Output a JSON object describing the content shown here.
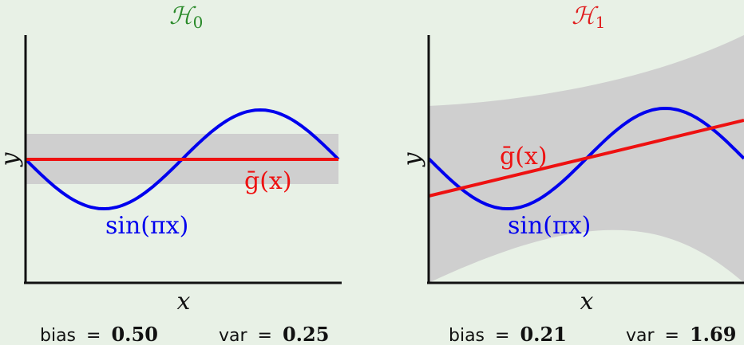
{
  "panels": [
    {
      "title": "ℋ",
      "title_sub": "0",
      "title_color": "#2a8a2a",
      "y_label": "y",
      "x_label": "x",
      "curve_label": "sin(πx)",
      "mean_label": "ḡ(x)",
      "bias_label": "bias",
      "bias_value": "0.50",
      "var_label": "var",
      "var_value": "0.25"
    },
    {
      "title": "ℋ",
      "title_sub": "1",
      "title_color": "#e01e1e",
      "y_label": "y",
      "x_label": "x",
      "curve_label": "sin(πx)",
      "mean_label": "ḡ(x)",
      "bias_label": "bias",
      "bias_value": "0.21",
      "var_label": "var",
      "var_value": "1.69"
    }
  ],
  "colors": {
    "sine": "#0000ee",
    "mean": "#ee1111",
    "band": "#cfcfcf",
    "axis": "#111111"
  },
  "equals": "="
}
